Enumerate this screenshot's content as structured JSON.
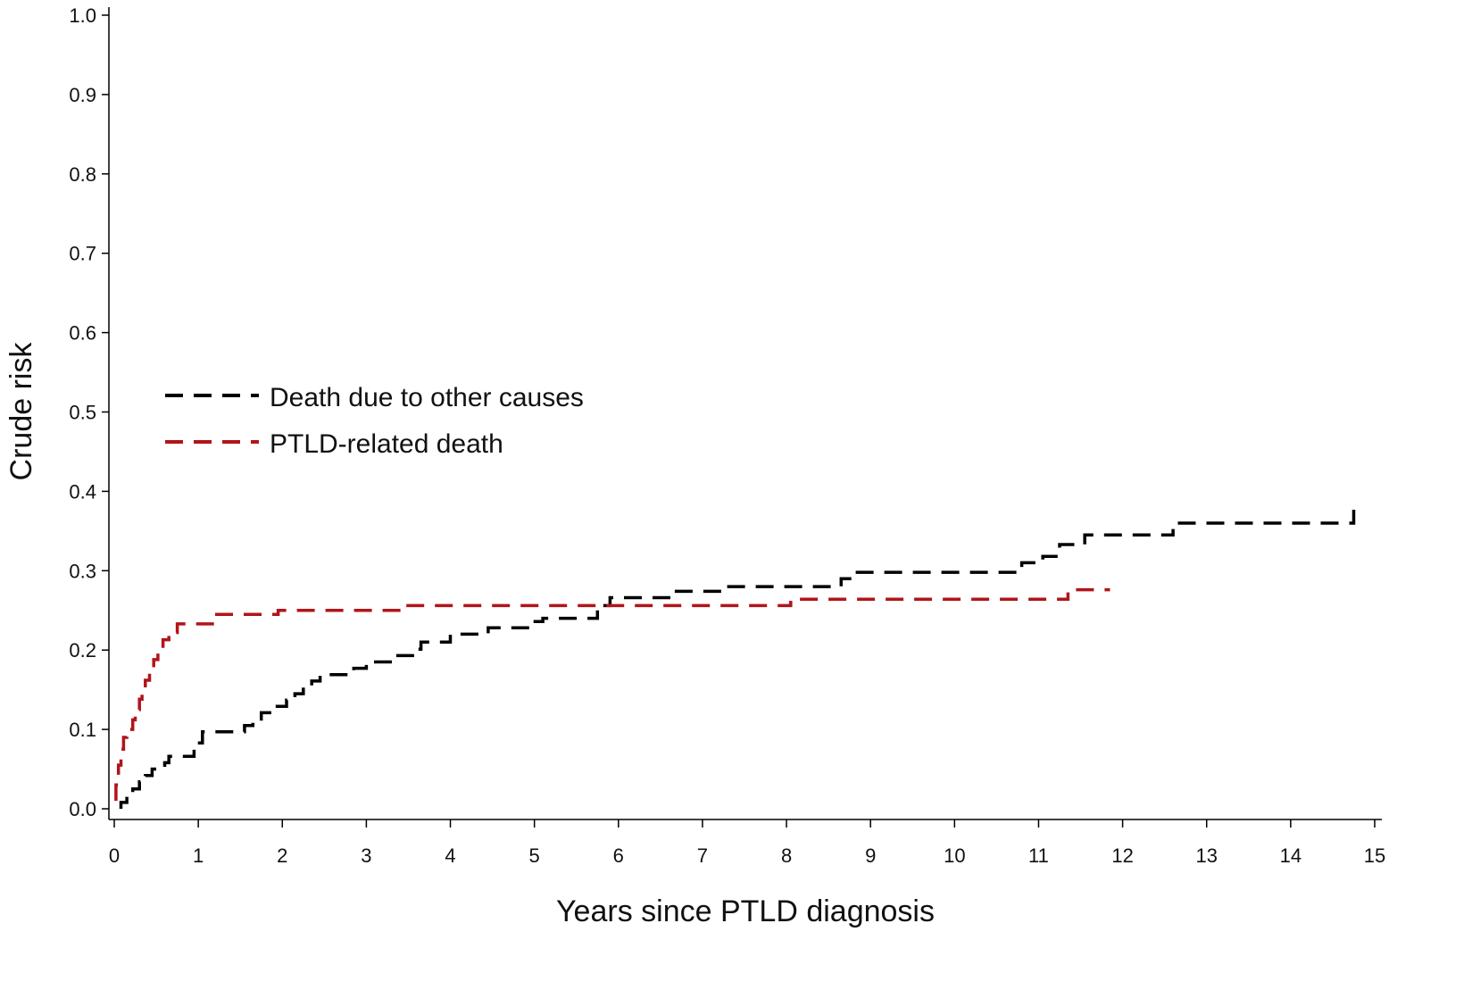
{
  "chart_data": {
    "type": "line",
    "title": "",
    "xlabel": "Years since PTLD diagnosis",
    "ylabel": "Crude risk",
    "xlim": [
      0,
      15
    ],
    "ylim": [
      0,
      1.0
    ],
    "x_ticks": [
      "0",
      "1",
      "2",
      "3",
      "4",
      "5",
      "6",
      "7",
      "8",
      "9",
      "10",
      "11",
      "12",
      "13",
      "14",
      "15"
    ],
    "y_ticks": [
      "0.0",
      "0.1",
      "0.2",
      "0.3",
      "0.4",
      "0.5",
      "0.6",
      "0.7",
      "0.8",
      "0.9",
      "1.0"
    ],
    "grid": false,
    "legend_position": "middle-left",
    "series": [
      {
        "name": "Death due to other causes",
        "color": "#000000",
        "line_style": "dashed-step",
        "points": [
          [
            0.08,
            0.0
          ],
          [
            0.08,
            0.008
          ],
          [
            0.15,
            0.008
          ],
          [
            0.15,
            0.017
          ],
          [
            0.22,
            0.017
          ],
          [
            0.22,
            0.025
          ],
          [
            0.3,
            0.025
          ],
          [
            0.3,
            0.034
          ],
          [
            0.37,
            0.034
          ],
          [
            0.37,
            0.042
          ],
          [
            0.45,
            0.042
          ],
          [
            0.45,
            0.05
          ],
          [
            0.6,
            0.05
          ],
          [
            0.6,
            0.058
          ],
          [
            0.65,
            0.058
          ],
          [
            0.65,
            0.066
          ],
          [
            0.95,
            0.066
          ],
          [
            0.95,
            0.083
          ],
          [
            1.05,
            0.083
          ],
          [
            1.05,
            0.097
          ],
          [
            1.55,
            0.097
          ],
          [
            1.55,
            0.105
          ],
          [
            1.65,
            0.105
          ],
          [
            1.65,
            0.113
          ],
          [
            1.75,
            0.113
          ],
          [
            1.75,
            0.121
          ],
          [
            1.9,
            0.121
          ],
          [
            1.9,
            0.129
          ],
          [
            2.05,
            0.129
          ],
          [
            2.05,
            0.137
          ],
          [
            2.15,
            0.137
          ],
          [
            2.15,
            0.145
          ],
          [
            2.25,
            0.145
          ],
          [
            2.25,
            0.153
          ],
          [
            2.35,
            0.153
          ],
          [
            2.35,
            0.161
          ],
          [
            2.45,
            0.161
          ],
          [
            2.45,
            0.169
          ],
          [
            2.85,
            0.169
          ],
          [
            2.85,
            0.177
          ],
          [
            3.0,
            0.177
          ],
          [
            3.0,
            0.185
          ],
          [
            3.35,
            0.185
          ],
          [
            3.35,
            0.193
          ],
          [
            3.55,
            0.193
          ],
          [
            3.55,
            0.201
          ],
          [
            3.65,
            0.201
          ],
          [
            3.65,
            0.21
          ],
          [
            4.0,
            0.21
          ],
          [
            4.0,
            0.22
          ],
          [
            4.45,
            0.22
          ],
          [
            4.45,
            0.228
          ],
          [
            4.95,
            0.228
          ],
          [
            4.95,
            0.236
          ],
          [
            5.1,
            0.236
          ],
          [
            5.1,
            0.24
          ],
          [
            5.75,
            0.24
          ],
          [
            5.75,
            0.256
          ],
          [
            5.9,
            0.256
          ],
          [
            5.9,
            0.266
          ],
          [
            6.65,
            0.266
          ],
          [
            6.65,
            0.274
          ],
          [
            7.25,
            0.274
          ],
          [
            7.25,
            0.28
          ],
          [
            8.65,
            0.28
          ],
          [
            8.65,
            0.29
          ],
          [
            8.8,
            0.29
          ],
          [
            8.8,
            0.298
          ],
          [
            10.8,
            0.298
          ],
          [
            10.8,
            0.31
          ],
          [
            11.05,
            0.31
          ],
          [
            11.05,
            0.318
          ],
          [
            11.25,
            0.318
          ],
          [
            11.25,
            0.333
          ],
          [
            11.55,
            0.333
          ],
          [
            11.55,
            0.345
          ],
          [
            12.6,
            0.345
          ],
          [
            12.6,
            0.36
          ],
          [
            14.75,
            0.36
          ],
          [
            14.75,
            0.382
          ]
        ]
      },
      {
        "name": "PTLD-related death",
        "color": "#b0151a",
        "line_style": "dashed-step",
        "points": [
          [
            0.02,
            0.01
          ],
          [
            0.02,
            0.03
          ],
          [
            0.05,
            0.03
          ],
          [
            0.05,
            0.055
          ],
          [
            0.08,
            0.055
          ],
          [
            0.08,
            0.075
          ],
          [
            0.11,
            0.075
          ],
          [
            0.11,
            0.09
          ],
          [
            0.15,
            0.09
          ],
          [
            0.15,
            0.1
          ],
          [
            0.22,
            0.1
          ],
          [
            0.22,
            0.112
          ],
          [
            0.25,
            0.112
          ],
          [
            0.25,
            0.125
          ],
          [
            0.3,
            0.125
          ],
          [
            0.3,
            0.138
          ],
          [
            0.33,
            0.138
          ],
          [
            0.33,
            0.15
          ],
          [
            0.37,
            0.15
          ],
          [
            0.37,
            0.162
          ],
          [
            0.42,
            0.162
          ],
          [
            0.42,
            0.175
          ],
          [
            0.47,
            0.175
          ],
          [
            0.47,
            0.188
          ],
          [
            0.52,
            0.188
          ],
          [
            0.52,
            0.2
          ],
          [
            0.58,
            0.2
          ],
          [
            0.58,
            0.213
          ],
          [
            0.65,
            0.213
          ],
          [
            0.65,
            0.222
          ],
          [
            0.75,
            0.222
          ],
          [
            0.75,
            0.233
          ],
          [
            1.2,
            0.233
          ],
          [
            1.2,
            0.245
          ],
          [
            1.95,
            0.245
          ],
          [
            1.95,
            0.25
          ],
          [
            3.45,
            0.25
          ],
          [
            3.45,
            0.256
          ],
          [
            8.05,
            0.256
          ],
          [
            8.05,
            0.264
          ],
          [
            11.35,
            0.264
          ],
          [
            11.35,
            0.276
          ],
          [
            11.85,
            0.276
          ]
        ]
      }
    ]
  }
}
